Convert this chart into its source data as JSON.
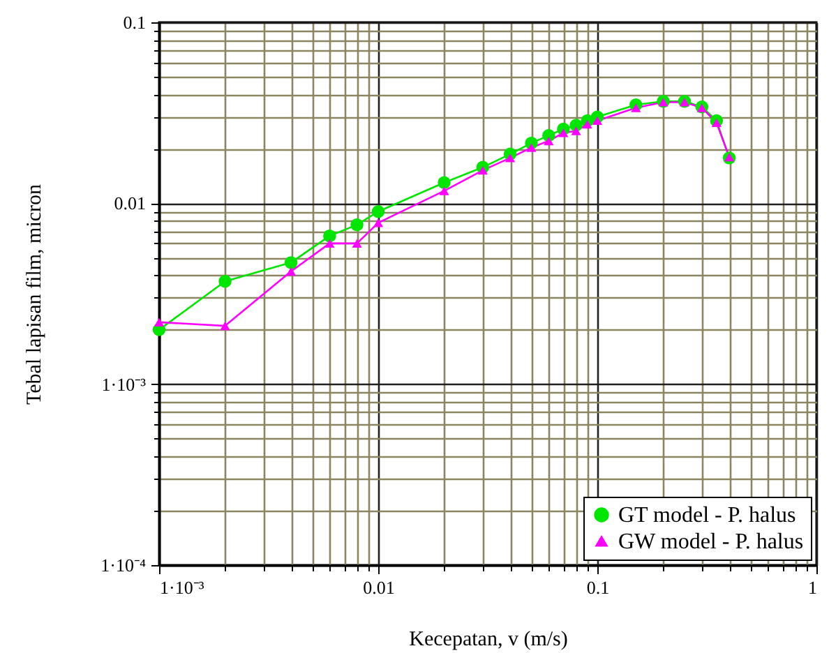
{
  "chart_data": {
    "type": "line",
    "xlabel": "Kecepatan, v (m/s)",
    "ylabel": "Tebal lapisan film, micron",
    "log": "xy",
    "grid": true,
    "legend": "bottom right",
    "x": [
      0.001,
      0.002,
      0.004,
      0.006,
      0.008,
      0.01,
      0.02,
      0.03,
      0.04,
      0.05,
      0.06,
      0.07,
      0.08,
      0.09,
      0.1,
      0.15,
      0.2,
      0.25,
      0.3,
      0.35,
      0.4
    ],
    "xlim": [
      0.001,
      1
    ],
    "ylim": [
      0.0001,
      0.1
    ],
    "xticks": [
      {
        "value": 0.001,
        "label": "1·10⁻³"
      },
      {
        "value": 0.002,
        "label": null
      },
      {
        "value": 0.003,
        "label": null
      },
      {
        "value": 0.004,
        "label": null
      },
      {
        "value": 0.005,
        "label": null
      },
      {
        "value": 0.006,
        "label": null
      },
      {
        "value": 0.007,
        "label": null
      },
      {
        "value": 0.008,
        "label": null
      },
      {
        "value": 0.009,
        "label": null
      },
      0.01,
      {
        "value": 0.02,
        "label": null
      },
      {
        "value": 0.03,
        "label": null
      },
      {
        "value": 0.04,
        "label": null
      },
      {
        "value": 0.05,
        "label": null
      },
      {
        "value": 0.06,
        "label": null
      },
      {
        "value": 0.07,
        "label": null
      },
      {
        "value": 0.08,
        "label": null
      },
      {
        "value": 0.09,
        "label": null
      },
      0.1,
      {
        "value": 0.2,
        "label": null
      },
      {
        "value": 0.3,
        "label": null
      },
      {
        "value": 0.4,
        "label": null
      },
      {
        "value": 0.5,
        "label": null
      },
      {
        "value": 0.6,
        "label": null
      },
      {
        "value": 0.7,
        "label": null
      },
      {
        "value": 0.8,
        "label": null
      },
      {
        "value": 0.9,
        "label": null
      },
      1
    ],
    "yticks": [
      {
        "value": 0.0001,
        "label": "1·10⁻⁴"
      },
      {
        "value": 0.0002,
        "label": null
      },
      {
        "value": 0.0003,
        "label": null
      },
      {
        "value": 0.0004,
        "label": null
      },
      {
        "value": 0.0005,
        "label": null
      },
      {
        "value": 0.0006,
        "label": null
      },
      {
        "value": 0.0007,
        "label": null
      },
      {
        "value": 0.0008,
        "label": null
      },
      {
        "value": 0.0009,
        "label": null
      },
      {
        "value": 0.001,
        "label": "1·10⁻³"
      },
      {
        "value": 0.002,
        "label": null
      },
      {
        "value": 0.003,
        "label": null
      },
      {
        "value": 0.004,
        "label": null
      },
      {
        "value": 0.005,
        "label": null
      },
      {
        "value": 0.006,
        "label": null
      },
      {
        "value": 0.007,
        "label": null
      },
      {
        "value": 0.008,
        "label": null
      },
      {
        "value": 0.009,
        "label": null
      },
      0.01,
      {
        "value": 0.02,
        "label": null
      },
      {
        "value": 0.03,
        "label": null
      },
      {
        "value": 0.04,
        "label": null
      },
      {
        "value": 0.05,
        "label": null
      },
      {
        "value": 0.06,
        "label": null
      },
      {
        "value": 0.07,
        "label": null
      },
      {
        "value": 0.08,
        "label": null
      },
      {
        "value": 0.09,
        "label": null
      },
      0.1
    ],
    "series": [
      {
        "name": "GT model - P. halus",
        "color": "#00e600",
        "marker": "circle",
        "values": [
          0.002,
          0.0037,
          0.0047,
          0.0066,
          0.0076,
          0.009,
          0.013,
          0.0158,
          0.0187,
          0.0215,
          0.0237,
          0.0257,
          0.027,
          0.0286,
          0.03,
          0.035,
          0.0366,
          0.0366,
          0.0341,
          0.0286,
          0.0178
        ]
      },
      {
        "name": "GW model - P. halus",
        "color": "#ff00ff",
        "marker": "triangle",
        "values": [
          0.0022,
          0.0021,
          0.0042,
          0.006,
          0.006,
          0.0078,
          0.0117,
          0.0152,
          0.0178,
          0.0203,
          0.0221,
          0.0245,
          0.0251,
          0.0273,
          0.0286,
          0.0337,
          0.0362,
          0.0362,
          0.0337,
          0.0279,
          0.018
        ]
      }
    ]
  }
}
